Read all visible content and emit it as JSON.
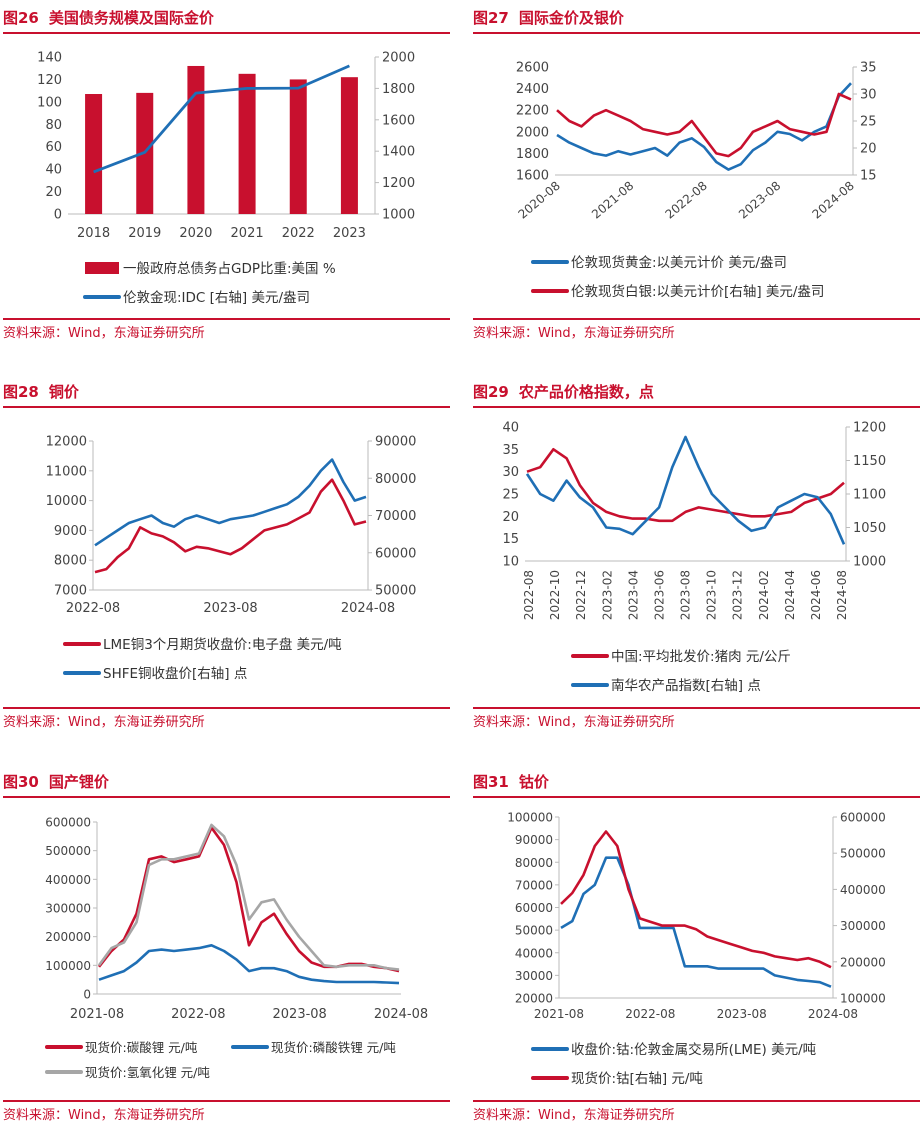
{
  "colors": {
    "red": "#c8102e",
    "blue": "#1f6fb5",
    "gray": "#a6a6a6",
    "title": "#c8102e"
  },
  "panels": [
    {
      "num": "图26",
      "title": "美国债务规模及国际金价",
      "source": "资料来源：Wind，东海证券研究所"
    },
    {
      "num": "图27",
      "title": "国际金价及银价",
      "source": "资料来源：Wind，东海证券研究所"
    },
    {
      "num": "图28",
      "title": "铜价",
      "source": "资料来源：Wind，东海证券研究所"
    },
    {
      "num": "图29",
      "title": "农产品价格指数，点",
      "source": "资料来源：Wind，东海证券研究所"
    },
    {
      "num": "图30",
      "title": "国产锂价",
      "source": "资料来源：Wind，东海证券研究所"
    },
    {
      "num": "图31",
      "title": "钴价",
      "source": "资料来源：Wind，东海证券研究所"
    }
  ],
  "chart_data": [
    {
      "id": "c26",
      "type": "bar+line",
      "title": "美国债务规模及国际金价",
      "categories": [
        "2018",
        "2019",
        "2020",
        "2021",
        "2022",
        "2023"
      ],
      "left_axis": {
        "ticks": [
          0,
          20,
          40,
          60,
          80,
          100,
          120,
          140
        ],
        "ylim": [
          0,
          140
        ]
      },
      "right_axis": {
        "ticks": [
          1000,
          1200,
          1400,
          1600,
          1800,
          2000
        ],
        "ylim": [
          1000,
          2000
        ]
      },
      "series": [
        {
          "name": "一般政府总债务占GDP比重:美国 %",
          "type": "bar",
          "axis": "left",
          "color": "#c8102e",
          "values": [
            107,
            108,
            132,
            125,
            120,
            122
          ]
        },
        {
          "name": "伦敦金现:IDC [右轴] 美元/盎司",
          "type": "line",
          "axis": "right",
          "color": "#1f6fb5",
          "values": [
            1268,
            1393,
            1770,
            1800,
            1802,
            1943
          ]
        }
      ]
    },
    {
      "id": "c27",
      "type": "line",
      "title": "国际金价及银价",
      "x_ticks": [
        "2020-08",
        "2021-08",
        "2022-08",
        "2023-08",
        "2024-08"
      ],
      "left_axis": {
        "ticks": [
          1600,
          1800,
          2000,
          2200,
          2400,
          2600
        ],
        "ylim": [
          1600,
          2600
        ]
      },
      "right_axis": {
        "ticks": [
          15,
          20,
          25,
          30,
          35
        ],
        "ylim": [
          15,
          35
        ]
      },
      "series": [
        {
          "name": "伦敦现货黄金:以美元计价 美元/盎司",
          "axis": "left",
          "color": "#1f6fb5",
          "x": [
            0,
            2,
            4,
            6,
            8,
            10,
            12,
            14,
            16,
            18,
            20,
            22,
            24,
            26,
            28,
            30,
            32,
            34,
            36,
            38,
            40,
            42,
            44,
            46,
            48
          ],
          "values": [
            1970,
            1900,
            1850,
            1800,
            1780,
            1820,
            1790,
            1820,
            1850,
            1780,
            1900,
            1940,
            1860,
            1720,
            1650,
            1700,
            1830,
            1900,
            2000,
            1980,
            1920,
            2000,
            2050,
            2330,
            2450
          ]
        },
        {
          "name": "伦敦现货白银:以美元计价[右轴] 美元/盎司",
          "axis": "right",
          "color": "#c8102e",
          "x": [
            0,
            2,
            4,
            6,
            8,
            10,
            12,
            14,
            16,
            18,
            20,
            22,
            24,
            26,
            28,
            30,
            32,
            34,
            36,
            38,
            40,
            42,
            44,
            46,
            48
          ],
          "values": [
            27,
            25,
            24,
            26,
            27,
            26,
            25,
            23.5,
            23,
            22.5,
            23,
            25,
            22,
            19,
            18.5,
            20,
            23,
            24,
            25,
            23.5,
            23,
            22.5,
            23,
            30,
            29
          ]
        }
      ]
    },
    {
      "id": "c28",
      "type": "line",
      "title": "铜价",
      "x_ticks": [
        "2022-08",
        "2023-08",
        "2024-08"
      ],
      "left_axis": {
        "ticks": [
          7000,
          8000,
          9000,
          10000,
          11000,
          12000
        ],
        "ylim": [
          7000,
          12000
        ]
      },
      "right_axis": {
        "ticks": [
          50000,
          60000,
          70000,
          80000,
          90000
        ],
        "ylim": [
          50000,
          90000
        ]
      },
      "series": [
        {
          "name": "LME铜3个月期货收盘价:电子盘 美元/吨",
          "axis": "left",
          "color": "#c8102e",
          "x": [
            0,
            1,
            2,
            3,
            4,
            5,
            6,
            7,
            8,
            9,
            10,
            11,
            12,
            13,
            14,
            15,
            16,
            17,
            18,
            19,
            20,
            21,
            22,
            23,
            24
          ],
          "values": [
            7600,
            7700,
            8100,
            8400,
            9100,
            8900,
            8800,
            8600,
            8300,
            8450,
            8400,
            8300,
            8200,
            8400,
            8700,
            9000,
            9100,
            9200,
            9400,
            9600,
            10300,
            10700,
            10000,
            9200,
            9300
          ]
        },
        {
          "name": "SHFE铜收盘价[右轴] 点",
          "axis": "right",
          "color": "#1f6fb5",
          "x": [
            0,
            1,
            2,
            3,
            4,
            5,
            6,
            7,
            8,
            9,
            10,
            11,
            12,
            13,
            14,
            15,
            16,
            17,
            18,
            19,
            20,
            21,
            22,
            23,
            24
          ],
          "values": [
            62000,
            64000,
            66000,
            68000,
            69000,
            70000,
            68000,
            67000,
            69000,
            70000,
            69000,
            68000,
            69000,
            69500,
            70000,
            71000,
            72000,
            73000,
            75000,
            78000,
            82000,
            85000,
            79000,
            74000,
            75000
          ]
        }
      ]
    },
    {
      "id": "c29",
      "type": "line",
      "title": "农产品价格指数，点",
      "x_ticks": [
        "2022-08",
        "2022-10",
        "2022-12",
        "2023-02",
        "2023-04",
        "2023-06",
        "2023-08",
        "2023-10",
        "2023-12",
        "2024-02",
        "2024-04",
        "2024-06",
        "2024-08"
      ],
      "left_axis": {
        "ticks": [
          10,
          15,
          20,
          25,
          30,
          35,
          40
        ],
        "ylim": [
          10,
          40
        ]
      },
      "right_axis": {
        "ticks": [
          1000,
          1050,
          1100,
          1150,
          1200
        ],
        "ylim": [
          1000,
          1200
        ]
      },
      "series": [
        {
          "name": "中国:平均批发价:猪肉 元/公斤",
          "axis": "left",
          "color": "#c8102e",
          "x": [
            0,
            1,
            2,
            3,
            4,
            5,
            6,
            7,
            8,
            9,
            10,
            11,
            12,
            13,
            14,
            15,
            16,
            17,
            18,
            19,
            20,
            21,
            22,
            23,
            24
          ],
          "values": [
            30,
            31,
            35,
            33,
            27,
            23,
            21,
            20,
            19.5,
            19.5,
            19,
            19,
            21,
            22,
            21.5,
            21,
            20.5,
            20,
            20,
            20.5,
            21,
            23,
            24,
            25,
            27.5
          ]
        },
        {
          "name": "南华农产品指数[右轴] 点",
          "axis": "right",
          "color": "#1f6fb5",
          "x": [
            0,
            1,
            2,
            3,
            4,
            5,
            6,
            7,
            8,
            9,
            10,
            11,
            12,
            13,
            14,
            15,
            16,
            17,
            18,
            19,
            20,
            21,
            22,
            23,
            24
          ],
          "values": [
            1130,
            1100,
            1090,
            1120,
            1095,
            1080,
            1050,
            1048,
            1040,
            1060,
            1080,
            1140,
            1185,
            1140,
            1100,
            1080,
            1060,
            1045,
            1050,
            1080,
            1090,
            1100,
            1095,
            1070,
            1025
          ]
        }
      ]
    },
    {
      "id": "c30",
      "type": "line",
      "title": "国产锂价",
      "x_ticks": [
        "2021-08",
        "2022-08",
        "2023-08",
        "2024-08"
      ],
      "left_axis": {
        "ticks": [
          0,
          100000,
          200000,
          300000,
          400000,
          500000,
          600000
        ],
        "ylim": [
          0,
          600000
        ]
      },
      "series": [
        {
          "name": "现货价:碳酸锂 元/吨",
          "color": "#c8102e",
          "x": [
            0,
            1,
            2,
            3,
            4,
            5,
            6,
            7,
            8,
            9,
            10,
            11,
            12,
            13,
            14,
            15,
            16,
            17,
            18,
            19,
            20,
            21,
            22,
            23,
            24
          ],
          "values": [
            95000,
            150000,
            190000,
            280000,
            470000,
            480000,
            460000,
            470000,
            480000,
            580000,
            520000,
            390000,
            170000,
            250000,
            280000,
            210000,
            150000,
            110000,
            95000,
            95000,
            105000,
            105000,
            95000,
            90000,
            80000
          ]
        },
        {
          "name": "现货价:磷酸铁锂 元/吨",
          "color": "#1f6fb5",
          "x": [
            0,
            1,
            2,
            3,
            4,
            5,
            6,
            7,
            8,
            9,
            10,
            11,
            12,
            13,
            14,
            15,
            16,
            17,
            18,
            19,
            20,
            21,
            22,
            23,
            24
          ],
          "values": [
            50000,
            65000,
            80000,
            110000,
            150000,
            155000,
            150000,
            155000,
            160000,
            170000,
            150000,
            120000,
            80000,
            90000,
            90000,
            80000,
            60000,
            50000,
            45000,
            42000,
            42000,
            42000,
            42000,
            40000,
            38000
          ]
        },
        {
          "name": "现货价:氢氧化锂 元/吨",
          "color": "#a6a6a6",
          "x": [
            0,
            1,
            2,
            3,
            4,
            5,
            6,
            7,
            8,
            9,
            10,
            11,
            12,
            13,
            14,
            15,
            16,
            17,
            18,
            19,
            20,
            21,
            22,
            23,
            24
          ],
          "values": [
            100000,
            160000,
            180000,
            250000,
            450000,
            470000,
            470000,
            480000,
            490000,
            590000,
            550000,
            450000,
            260000,
            320000,
            330000,
            260000,
            200000,
            150000,
            100000,
            95000,
            100000,
            100000,
            100000,
            90000,
            85000
          ]
        }
      ]
    },
    {
      "id": "c31",
      "type": "line",
      "title": "钴价",
      "x_ticks": [
        "2021-08",
        "2022-08",
        "2023-08",
        "2024-08"
      ],
      "left_axis": {
        "ticks": [
          20000,
          30000,
          40000,
          50000,
          60000,
          70000,
          80000,
          90000,
          100000
        ],
        "ylim": [
          20000,
          100000
        ]
      },
      "right_axis": {
        "ticks": [
          100000,
          200000,
          300000,
          400000,
          500000,
          600000
        ],
        "ylim": [
          100000,
          600000
        ]
      },
      "series": [
        {
          "name": "收盘价:钴:伦敦金属交易所(LME) 美元/吨",
          "axis": "left",
          "color": "#1f6fb5",
          "x": [
            0,
            1,
            2,
            3,
            4,
            5,
            6,
            7,
            8,
            9,
            10,
            11,
            12,
            13,
            14,
            15,
            16,
            17,
            18,
            19,
            20,
            21,
            22,
            23,
            24
          ],
          "values": [
            51000,
            54000,
            66000,
            70000,
            82000,
            82000,
            70000,
            51000,
            51000,
            51000,
            51000,
            34000,
            34000,
            34000,
            33000,
            33000,
            33000,
            33000,
            33000,
            30000,
            29000,
            28000,
            27500,
            27000,
            25000
          ]
        },
        {
          "name": "现货价:钴[右轴] 元/吨",
          "axis": "right",
          "color": "#c8102e",
          "x": [
            0,
            1,
            2,
            3,
            4,
            5,
            6,
            7,
            8,
            9,
            10,
            11,
            12,
            13,
            14,
            15,
            16,
            17,
            18,
            19,
            20,
            21,
            22,
            23,
            24
          ],
          "values": [
            360000,
            390000,
            440000,
            520000,
            560000,
            520000,
            400000,
            320000,
            310000,
            300000,
            300000,
            300000,
            290000,
            270000,
            260000,
            250000,
            240000,
            230000,
            225000,
            215000,
            210000,
            205000,
            210000,
            200000,
            185000
          ]
        }
      ]
    }
  ],
  "legend_names": {
    "c26": [
      "一般政府总债务占GDP比重:美国 %",
      "伦敦金现:IDC [右轴] 美元/盎司"
    ],
    "c27": [
      "伦敦现货黄金:以美元计价 美元/盎司",
      "伦敦现货白银:以美元计价[右轴] 美元/盎司"
    ],
    "c28": [
      "LME铜3个月期货收盘价:电子盘 美元/吨",
      "SHFE铜收盘价[右轴] 点"
    ],
    "c29": [
      "中国:平均批发价:猪肉 元/公斤",
      "南华农产品指数[右轴] 点"
    ],
    "c30": [
      "现货价:碳酸锂 元/吨",
      "现货价:磷酸铁锂 元/吨",
      "现货价:氢氧化锂 元/吨"
    ],
    "c31": [
      "收盘价:钴:伦敦金属交易所(LME) 美元/吨",
      "现货价:钴[右轴] 元/吨"
    ]
  }
}
